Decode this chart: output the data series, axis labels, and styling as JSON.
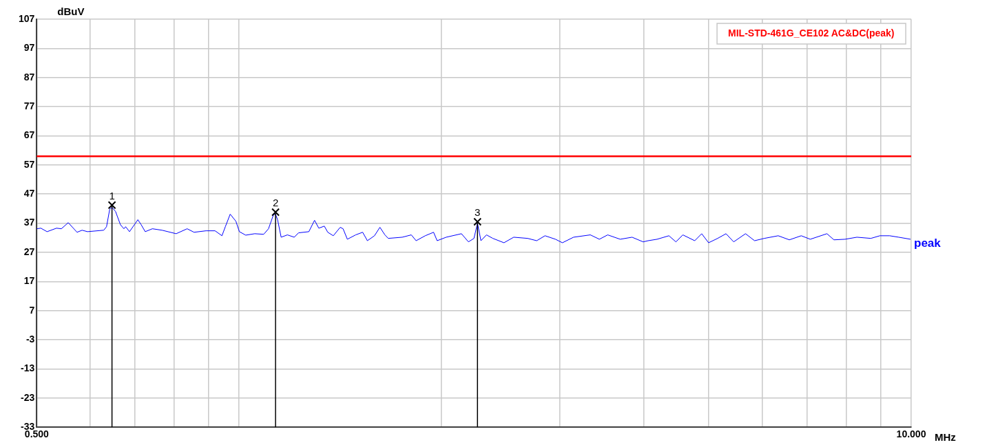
{
  "chart_data": {
    "type": "line",
    "xlabel": "MHz",
    "ylabel": "dBuV",
    "log": "x",
    "grid": true,
    "marker": "none",
    "line_style": "solid",
    "xlim": [
      0.5,
      10
    ],
    "xticks": [
      {
        "value": 0.5,
        "label": "0.500"
      },
      {
        "value": 0.6,
        "label": null
      },
      {
        "value": 0.7,
        "label": null
      },
      {
        "value": 0.8,
        "label": null
      },
      {
        "value": 0.9,
        "label": null
      },
      {
        "value": 1,
        "label": null
      },
      {
        "value": 2,
        "label": null
      },
      {
        "value": 3,
        "label": null
      },
      {
        "value": 4,
        "label": null
      },
      {
        "value": 5,
        "label": null
      },
      {
        "value": 6,
        "label": null
      },
      {
        "value": 7,
        "label": null
      },
      {
        "value": 8,
        "label": null
      },
      {
        "value": 9,
        "label": null
      },
      {
        "value": 10,
        "label": "10.000"
      }
    ],
    "ylim": [
      -33,
      107
    ],
    "yticks": [
      -33,
      -23,
      -13,
      -3,
      7,
      17,
      27,
      37,
      47,
      57,
      67,
      77,
      87,
      97,
      107
    ],
    "ref_lines": [
      {
        "axis": "y",
        "value": 60,
        "label": "MIL-STD-461G_CE102 AC&DC(peak)",
        "color": "#ff0000"
      }
    ],
    "annotations": [
      {
        "text": "1",
        "x": 0.647,
        "y": 43.2
      },
      {
        "text": "2",
        "x": 1.133,
        "y": 40.8
      },
      {
        "text": "3",
        "x": 2.263,
        "y": 37.5
      }
    ],
    "series": [
      {
        "name": "peak",
        "color": "#0000ff",
        "x": [
          0.5,
          0.507,
          0.518,
          0.535,
          0.544,
          0.557,
          0.574,
          0.584,
          0.595,
          0.629,
          0.635,
          0.642,
          0.647,
          0.655,
          0.666,
          0.674,
          0.678,
          0.687,
          0.707,
          0.715,
          0.725,
          0.743,
          0.768,
          0.806,
          0.837,
          0.857,
          0.893,
          0.921,
          0.943,
          0.954,
          0.97,
          0.989,
          1.001,
          1.023,
          1.055,
          1.088,
          1.106,
          1.125,
          1.133,
          1.141,
          1.155,
          1.18,
          1.208,
          1.226,
          1.27,
          1.295,
          1.314,
          1.339,
          1.355,
          1.381,
          1.414,
          1.428,
          1.449,
          1.491,
          1.527,
          1.552,
          1.59,
          1.62,
          1.648,
          1.667,
          1.749,
          1.804,
          1.834,
          1.892,
          1.947,
          1.971,
          2.033,
          2.142,
          2.194,
          2.236,
          2.263,
          2.29,
          2.334,
          2.385,
          2.478,
          2.562,
          2.687,
          2.772,
          2.852,
          2.956,
          3.027,
          3.145,
          3.331,
          3.436,
          3.535,
          3.69,
          3.843,
          3.992,
          4.06,
          4.187,
          4.36,
          4.466,
          4.573,
          4.763,
          4.878,
          4.995,
          5.152,
          5.302,
          5.443,
          5.668,
          5.847,
          6.045,
          6.34,
          6.587,
          6.86,
          7.076,
          7.492,
          7.674,
          7.972,
          8.302,
          8.708,
          8.982,
          9.287,
          9.58,
          9.976
        ],
        "values": [
          35.1,
          35.3,
          34.1,
          35.3,
          35.1,
          37.2,
          33.9,
          34.6,
          34.1,
          34.6,
          35.8,
          41.8,
          42.5,
          41.0,
          36.5,
          35.1,
          35.8,
          34.1,
          38.2,
          36.5,
          34.1,
          35.1,
          34.6,
          33.4,
          35.1,
          33.9,
          34.4,
          34.4,
          32.7,
          35.8,
          40.1,
          37.7,
          34.1,
          32.9,
          33.4,
          33.2,
          35.1,
          39.9,
          40.1,
          38.2,
          32.2,
          33.0,
          32.2,
          33.7,
          34.1,
          38.0,
          35.3,
          36.0,
          33.9,
          32.7,
          35.6,
          35.1,
          31.5,
          33.0,
          33.9,
          31.0,
          32.7,
          35.6,
          33.0,
          31.8,
          32.2,
          33.0,
          31.0,
          32.7,
          33.9,
          31.0,
          32.2,
          33.4,
          30.6,
          31.8,
          37.0,
          31.0,
          33.0,
          31.8,
          30.3,
          32.2,
          31.8,
          31.0,
          32.7,
          31.5,
          30.3,
          32.2,
          33.0,
          31.5,
          33.0,
          31.5,
          32.2,
          30.6,
          31.0,
          31.5,
          32.7,
          30.6,
          33.0,
          31.0,
          33.4,
          30.3,
          31.8,
          33.4,
          30.6,
          33.4,
          31.0,
          31.8,
          32.7,
          31.3,
          32.7,
          31.5,
          33.4,
          31.3,
          31.5,
          32.2,
          31.8,
          32.7,
          32.7,
          32.2,
          31.5
        ]
      }
    ]
  }
}
